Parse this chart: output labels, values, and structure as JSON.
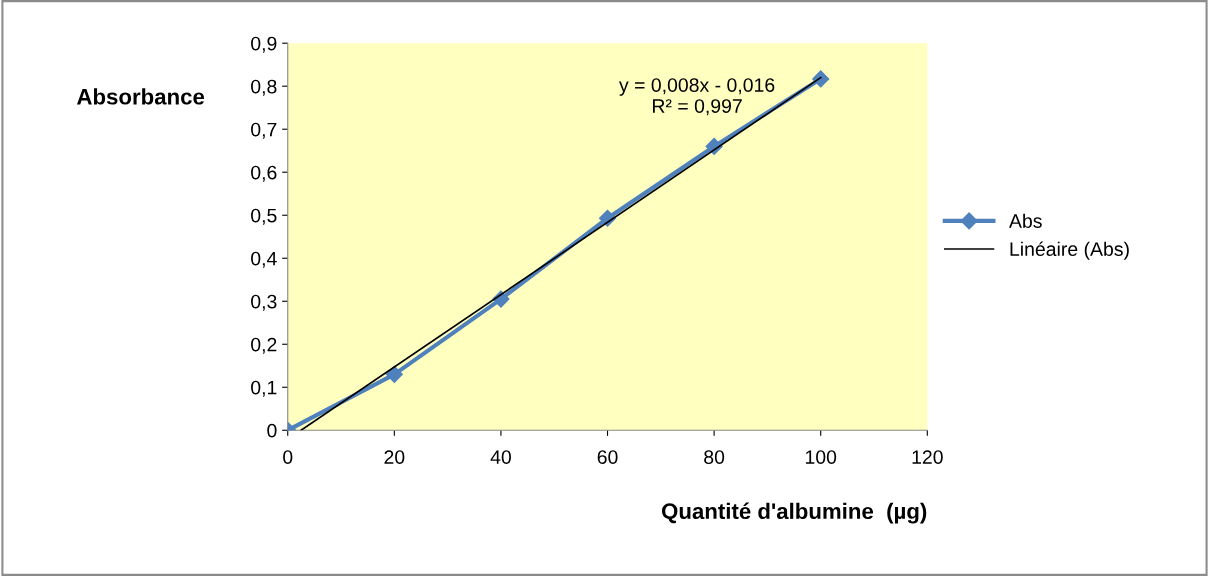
{
  "chart_data": {
    "type": "line",
    "xlabel": "Quantité d'albumine  (µg)",
    "ylabel": "Absorbance",
    "series": [
      {
        "name": "Abs",
        "color": "#4f81bd",
        "x": [
          0,
          20,
          40,
          60,
          80,
          100
        ],
        "values": [
          0,
          0.13,
          0.305,
          0.493,
          0.66,
          0.817
        ],
        "marker": "diamond"
      },
      {
        "name": "Linéaire (Abs)",
        "color": "#000000",
        "type": "line",
        "x": [
          2.5,
          100
        ],
        "values": [
          0,
          0.82
        ],
        "marker": "none"
      }
    ],
    "xlim": [
      0,
      120
    ],
    "xticks": [
      0,
      20,
      40,
      60,
      80,
      100,
      120
    ],
    "ylim": [
      0,
      0.9
    ],
    "yticks": [
      0,
      {
        "value": 0.1,
        "label": "0,1"
      },
      {
        "value": 0.2,
        "label": "0,2"
      },
      {
        "value": 0.3,
        "label": "0,3"
      },
      {
        "value": 0.4,
        "label": "0,4"
      },
      {
        "value": 0.5,
        "label": "0,5"
      },
      {
        "value": 0.6,
        "label": "0,6"
      },
      {
        "value": 0.7,
        "label": "0,7"
      },
      {
        "value": 0.8,
        "label": "0,8"
      },
      {
        "value": 0.9,
        "label": "0,9"
      }
    ],
    "annotations": [
      "y = 0,008x - 0,016\nR² = 0,997"
    ],
    "grid": false,
    "legend": "right"
  }
}
